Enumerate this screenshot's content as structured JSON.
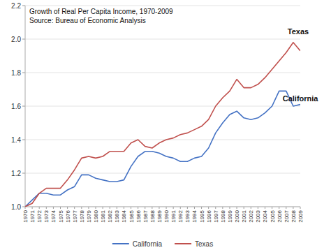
{
  "chart_data": {
    "type": "line",
    "title": "Growth of Real Per Capita Income, 1970-2009",
    "subtitle": "Source: Bureau of Economic Analysis",
    "x": [
      1970,
      1971,
      1972,
      1973,
      1974,
      1975,
      1976,
      1977,
      1978,
      1979,
      1980,
      1981,
      1982,
      1983,
      1984,
      1985,
      1986,
      1987,
      1988,
      1989,
      1990,
      1991,
      1992,
      1993,
      1994,
      1995,
      1996,
      1997,
      1998,
      1999,
      2000,
      2001,
      2002,
      2003,
      2004,
      2005,
      2006,
      2007,
      2008,
      2009
    ],
    "series": [
      {
        "name": "California",
        "color": "#4472C4",
        "values": [
          1.0,
          1.04,
          1.08,
          1.08,
          1.07,
          1.07,
          1.1,
          1.12,
          1.19,
          1.19,
          1.17,
          1.16,
          1.15,
          1.15,
          1.16,
          1.24,
          1.3,
          1.33,
          1.33,
          1.32,
          1.3,
          1.29,
          1.27,
          1.27,
          1.29,
          1.3,
          1.35,
          1.44,
          1.5,
          1.55,
          1.57,
          1.53,
          1.52,
          1.53,
          1.56,
          1.6,
          1.69,
          1.69,
          1.6,
          1.61
        ]
      },
      {
        "name": "Texas",
        "color": "#C0504D",
        "values": [
          1.0,
          1.02,
          1.08,
          1.11,
          1.11,
          1.11,
          1.16,
          1.22,
          1.29,
          1.3,
          1.29,
          1.3,
          1.33,
          1.33,
          1.33,
          1.38,
          1.4,
          1.36,
          1.35,
          1.38,
          1.4,
          1.41,
          1.43,
          1.44,
          1.46,
          1.48,
          1.52,
          1.6,
          1.65,
          1.69,
          1.76,
          1.71,
          1.71,
          1.73,
          1.77,
          1.82,
          1.87,
          1.92,
          1.98,
          1.93
        ]
      }
    ],
    "xlim": [
      1970,
      2009
    ],
    "xticks": [
      1970,
      1971,
      1972,
      1973,
      1974,
      1975,
      1976,
      1977,
      1978,
      1979,
      1980,
      1981,
      1982,
      1983,
      1984,
      1985,
      1986,
      1987,
      1988,
      1989,
      1990,
      1991,
      1992,
      1993,
      1994,
      1995,
      1996,
      1997,
      1998,
      1999,
      2000,
      2001,
      2002,
      2003,
      2004,
      2005,
      2006,
      2007,
      2008,
      2009
    ],
    "ylim": [
      1.0,
      2.2
    ],
    "yticks": [
      {
        "value": 1.0,
        "label": "1.0"
      },
      1.2,
      1.4,
      1.6,
      1.8,
      {
        "value": 2.0,
        "label": "2.0"
      },
      2.2
    ],
    "grid": true,
    "legend": "bottom",
    "annotations": [
      {
        "text": "Texas",
        "x": 2007.2,
        "y": 2.03
      },
      {
        "text": "California",
        "x": 2006.5,
        "y": 1.63
      }
    ]
  }
}
